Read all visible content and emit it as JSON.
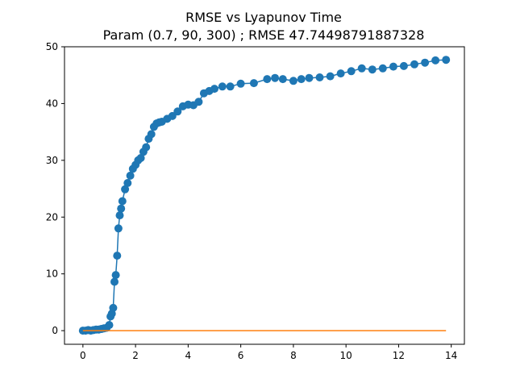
{
  "chart_data": {
    "type": "line",
    "title": "RMSE vs Lyapunov Time",
    "subtitle": "Param (0.7, 90, 300) ; RMSE 47.74498791887328",
    "xlabel": "",
    "ylabel": "",
    "xlim": [
      -0.7,
      14.5
    ],
    "ylim": [
      -2.4,
      50
    ],
    "x_ticks": [
      0,
      2,
      4,
      6,
      8,
      10,
      12,
      14
    ],
    "y_ticks": [
      0,
      10,
      20,
      30,
      40,
      50
    ],
    "grid": false,
    "legend": "none",
    "series": [
      {
        "color": "#1f77b4",
        "markers": true,
        "x": [
          0.0,
          0.1,
          0.2,
          0.3,
          0.4,
          0.5,
          0.6,
          0.7,
          0.8,
          0.9,
          1.0,
          1.05,
          1.1,
          1.15,
          1.2,
          1.25,
          1.3,
          1.35,
          1.4,
          1.45,
          1.5,
          1.6,
          1.7,
          1.8,
          1.9,
          2.0,
          2.1,
          2.2,
          2.3,
          2.4,
          2.5,
          2.6,
          2.7,
          2.8,
          2.9,
          3.0,
          3.2,
          3.4,
          3.6,
          3.8,
          4.0,
          4.2,
          4.4,
          4.6,
          4.8,
          5.0,
          5.3,
          5.6,
          6.0,
          6.5,
          7.0,
          7.3,
          7.6,
          8.0,
          8.3,
          8.6,
          9.0,
          9.4,
          9.8,
          10.2,
          10.6,
          11.0,
          11.4,
          11.8,
          12.2,
          12.6,
          13.0,
          13.4,
          13.8
        ],
        "y": [
          0.0,
          0.0,
          0.1,
          0.0,
          0.1,
          0.2,
          0.2,
          0.3,
          0.4,
          0.5,
          1.0,
          2.5,
          3.0,
          4.0,
          8.6,
          9.8,
          13.2,
          18.0,
          20.3,
          21.5,
          22.8,
          24.9,
          26.0,
          27.3,
          28.5,
          29.2,
          30.0,
          30.4,
          31.5,
          32.3,
          33.8,
          34.6,
          35.9,
          36.5,
          36.7,
          36.8,
          37.3,
          37.8,
          38.6,
          39.5,
          39.8,
          39.7,
          40.3,
          41.8,
          42.2,
          42.6,
          43.0,
          43.0,
          43.5,
          43.6,
          44.3,
          44.5,
          44.3,
          44.0,
          44.3,
          44.5,
          44.6,
          44.8,
          45.3,
          45.7,
          46.2,
          46.0,
          46.2,
          46.5,
          46.6,
          46.9,
          47.2,
          47.6,
          47.7
        ]
      },
      {
        "color": "#ff7f0e",
        "markers": false,
        "x": [
          0.0,
          13.8
        ],
        "y": [
          0.0,
          0.0
        ]
      }
    ]
  }
}
